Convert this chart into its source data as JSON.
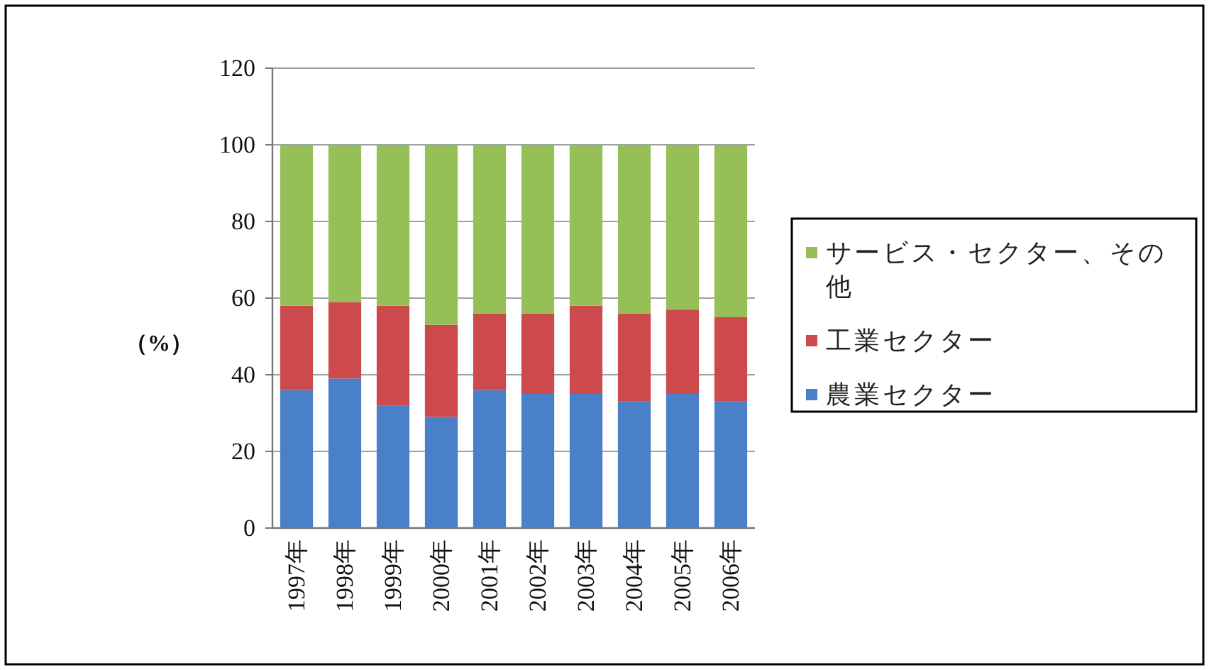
{
  "chart_data": {
    "type": "bar",
    "stacked": true,
    "categories": [
      "1997年",
      "1998年",
      "1999年",
      "2000年",
      "2001年",
      "2002年",
      "2003年",
      "2004年",
      "2005年",
      "2006年"
    ],
    "ylabel": "（%）",
    "ylim": [
      0,
      120
    ],
    "yticks": [
      0,
      20,
      40,
      60,
      80,
      100,
      120
    ],
    "grid": "y",
    "legend": "right",
    "series": [
      {
        "name": "農業セクター",
        "color": "#4a80c8",
        "values": [
          36,
          39,
          32,
          29,
          36,
          35,
          35,
          33,
          35,
          33
        ]
      },
      {
        "name": "工業セクター",
        "color": "#cc4a4c",
        "values": [
          22,
          20,
          26,
          24,
          20,
          21,
          23,
          23,
          22,
          22
        ]
      },
      {
        "name": "サービス・セクター、その他",
        "color": "#96c057",
        "values": [
          42,
          41,
          42,
          47,
          44,
          44,
          42,
          44,
          43,
          45
        ]
      }
    ]
  }
}
